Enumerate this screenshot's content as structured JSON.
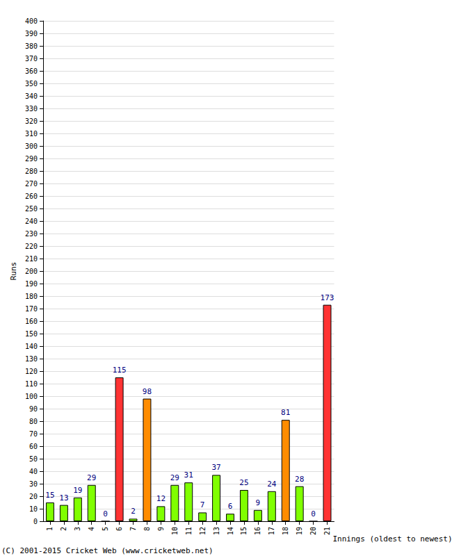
{
  "chart_data": {
    "type": "bar",
    "x_label": "Innings (oldest to newest)",
    "y_label": "Runs",
    "annotation": "(C) 2001-2015 Cricket Web (www.cricketweb.net)",
    "categories": [
      "1",
      "2",
      "3",
      "4",
      "5",
      "6",
      "7",
      "8",
      "9",
      "10",
      "11",
      "12",
      "13",
      "14",
      "15",
      "16",
      "17",
      "18",
      "19",
      "20",
      "21"
    ],
    "values": [
      15,
      13,
      19,
      29,
      0,
      115,
      2,
      98,
      12,
      29,
      31,
      7,
      37,
      6,
      25,
      9,
      24,
      81,
      28,
      0,
      173
    ],
    "colors": [
      "#80ff00",
      "#80ff00",
      "#80ff00",
      "#80ff00",
      "#80ff00",
      "#ff3333",
      "#80ff00",
      "#ff8c00",
      "#80ff00",
      "#80ff00",
      "#80ff00",
      "#80ff00",
      "#80ff00",
      "#80ff00",
      "#80ff00",
      "#80ff00",
      "#80ff00",
      "#ff8c00",
      "#80ff00",
      "#80ff00",
      "#ff3333"
    ],
    "ylim": [
      0,
      400
    ],
    "yticks": [
      0,
      10,
      20,
      30,
      40,
      50,
      60,
      70,
      80,
      90,
      100,
      110,
      120,
      130,
      140,
      150,
      160,
      170,
      180,
      190,
      200,
      210,
      220,
      230,
      240,
      250,
      260,
      270,
      280,
      290,
      300,
      310,
      320,
      330,
      340,
      350,
      360,
      370,
      380,
      390,
      400
    ],
    "grid": true,
    "data_labels": true
  }
}
